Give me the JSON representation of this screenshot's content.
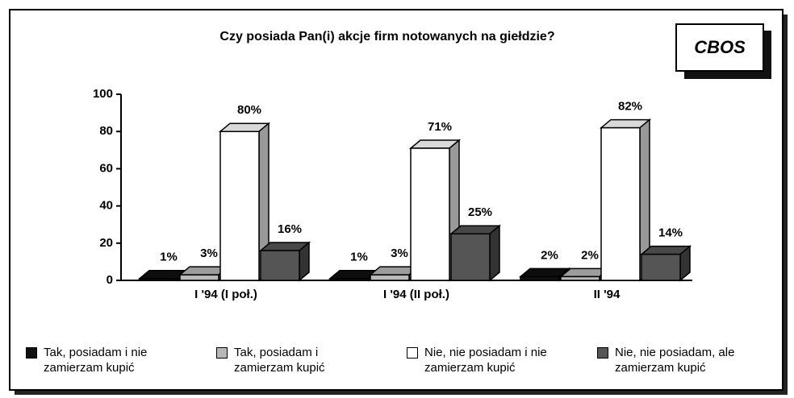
{
  "chart_data": {
    "type": "bar3d",
    "title": "Czy posiada Pan(i) akcje firm notowanych na giełdzie?",
    "logo": "CBOS",
    "categories": [
      "I '94 (I poł.)",
      "I '94 (II poł.)",
      "II '94"
    ],
    "series": [
      {
        "name": "Tak, posiadam i nie zamierzam kupić",
        "color": "#111111",
        "values": [
          1,
          1,
          2
        ],
        "value_labels": [
          "1%",
          "1%",
          "2%"
        ]
      },
      {
        "name": "Tak, posiadam i zamierzam kupić",
        "color": "#b8b8b8",
        "values": [
          3,
          3,
          2
        ],
        "value_labels": [
          "3%",
          "3%",
          "2%"
        ]
      },
      {
        "name": "Nie, nie posiadam i nie zamierzam kupić",
        "color": "#ffffff",
        "values": [
          80,
          71,
          82
        ],
        "value_labels": [
          "80%",
          "71%",
          "82%"
        ]
      },
      {
        "name": "Nie, nie posiadam, ale zamierzam kupić",
        "color": "#555555",
        "values": [
          16,
          25,
          14
        ],
        "value_labels": [
          "16%",
          "25%",
          "14%"
        ]
      }
    ],
    "ylim": [
      0,
      100
    ],
    "yticks": [
      0,
      20,
      40,
      60,
      80,
      100
    ],
    "legend": "bottom"
  }
}
